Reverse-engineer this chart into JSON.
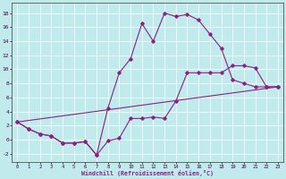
{
  "xlabel": "Windchill (Refroidissement éolien,°C)",
  "bg_color": "#c0eaec",
  "line_color": "#882288",
  "xlim": [
    -0.5,
    23.5
  ],
  "ylim": [
    -3.2,
    19.5
  ],
  "xticks": [
    0,
    1,
    2,
    3,
    4,
    5,
    6,
    7,
    8,
    9,
    10,
    11,
    12,
    13,
    14,
    15,
    16,
    17,
    18,
    19,
    20,
    21,
    22,
    23
  ],
  "yticks": [
    -2,
    0,
    2,
    4,
    6,
    8,
    10,
    12,
    14,
    16,
    18
  ],
  "line1_x": [
    0,
    1,
    2,
    3,
    4,
    5,
    6,
    7,
    8,
    9,
    10,
    11,
    12,
    13,
    14,
    15,
    16,
    17,
    18,
    19,
    20,
    21,
    22,
    23
  ],
  "line1_y": [
    2.5,
    1.5,
    0.8,
    0.5,
    -0.5,
    -0.5,
    -0.3,
    -2.2,
    -0.2,
    0.2,
    3.0,
    3.0,
    3.2,
    3.0,
    5.5,
    9.5,
    9.5,
    9.5,
    9.5,
    10.5,
    10.5,
    10.2,
    7.5,
    7.5
  ],
  "line2_x": [
    0,
    1,
    2,
    3,
    4,
    5,
    6,
    7,
    8,
    9,
    10,
    11,
    12,
    13,
    14,
    15,
    16,
    17,
    18,
    19,
    20,
    21,
    22,
    23
  ],
  "line2_y": [
    2.5,
    1.5,
    0.8,
    0.5,
    -0.5,
    -0.5,
    -0.3,
    -2.2,
    4.5,
    9.5,
    11.5,
    16.5,
    14.0,
    18.0,
    17.5,
    17.8,
    17.0,
    15.0,
    13.0,
    8.5,
    8.0,
    7.5,
    7.5,
    7.5
  ],
  "line3_x": [
    0,
    23
  ],
  "line3_y": [
    2.5,
    7.5
  ]
}
